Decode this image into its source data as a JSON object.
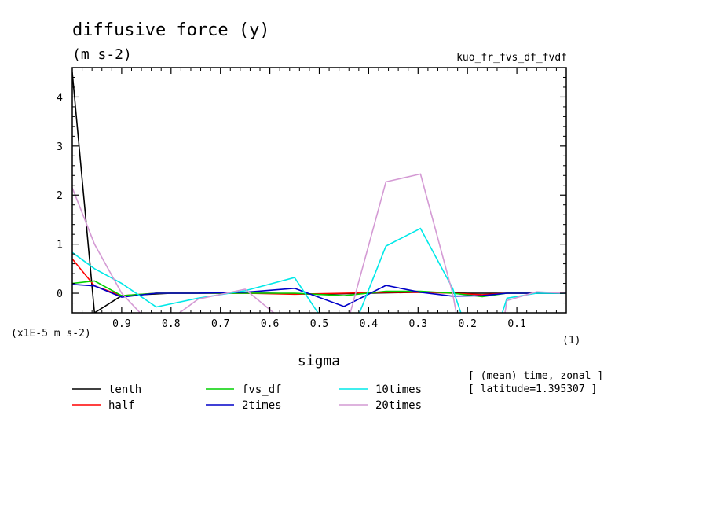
{
  "chart_data": {
    "type": "line",
    "title": "diffusive force (y)",
    "subtitle": "(m s-2)",
    "experiment_label": "kuo_fr_fvs_df_fvdf",
    "xlabel": "sigma",
    "x_unit": "(1)",
    "y_unit_label": "(x1E-5 m s-2)",
    "info_lines": [
      "[ (mean) time, zonal ]",
      "[ latitude=1.395307 ]"
    ],
    "xlim": [
      1.0,
      0.0
    ],
    "ylim": [
      -0.4,
      4.6
    ],
    "x_ticks": [
      0.9,
      0.8,
      0.7,
      0.6,
      0.5,
      0.4,
      0.3,
      0.2,
      0.1
    ],
    "x_tick_labels": [
      "0.9",
      "0.8",
      "0.7",
      "0.6",
      "0.5",
      "0.4",
      "0.3",
      "0.2",
      "0.1"
    ],
    "y_ticks": [
      0,
      1,
      2,
      3,
      4
    ],
    "y_tick_labels": [
      "0",
      "1",
      "2",
      "3",
      "4"
    ],
    "grid": false,
    "legend_position": "bottom",
    "series": [
      {
        "name": "tenth",
        "color": "#000000",
        "x": [
          1.0,
          0.955,
          0.9,
          0.8,
          0.7,
          0.6,
          0.5,
          0.4,
          0.3,
          0.2,
          0.1,
          0.0
        ],
        "y": [
          4.5,
          -0.4,
          -0.05,
          0.0,
          0.0,
          0.0,
          -0.02,
          0.0,
          0.02,
          0.0,
          0.0,
          0.0
        ]
      },
      {
        "name": "half",
        "color": "#ff0000",
        "x": [
          1.0,
          0.955,
          0.9,
          0.83,
          0.745,
          0.65,
          0.55,
          0.45,
          0.365,
          0.295,
          0.23,
          0.17,
          0.12,
          0.06,
          0.0
        ],
        "y": [
          0.7,
          0.15,
          -0.05,
          0.0,
          0.0,
          0.0,
          -0.02,
          0.0,
          0.02,
          0.02,
          0.0,
          -0.03,
          0.0,
          0.0,
          0.0
        ]
      },
      {
        "name": "fvs_df",
        "color": "#00d000",
        "x": [
          1.0,
          0.955,
          0.9,
          0.83,
          0.745,
          0.65,
          0.55,
          0.45,
          0.365,
          0.295,
          0.23,
          0.17,
          0.12,
          0.06,
          0.0
        ],
        "y": [
          0.2,
          0.25,
          -0.05,
          0.0,
          0.0,
          0.0,
          0.0,
          -0.05,
          0.04,
          0.04,
          0.0,
          -0.07,
          0.0,
          0.0,
          0.0
        ]
      },
      {
        "name": "2times",
        "color": "#0000c8",
        "x": [
          1.0,
          0.955,
          0.9,
          0.83,
          0.745,
          0.65,
          0.55,
          0.45,
          0.365,
          0.295,
          0.23,
          0.17,
          0.12,
          0.06,
          0.0
        ],
        "y": [
          0.18,
          0.15,
          -0.08,
          0.0,
          0.0,
          0.02,
          0.1,
          -0.27,
          0.16,
          0.02,
          -0.06,
          -0.05,
          0.0,
          0.0,
          0.0
        ]
      },
      {
        "name": "10times",
        "color": "#00e8e8",
        "x": [
          1.0,
          0.955,
          0.9,
          0.83,
          0.745,
          0.65,
          0.55,
          0.45,
          0.365,
          0.295,
          0.23,
          0.17,
          0.12,
          0.06,
          0.0
        ],
        "y": [
          0.83,
          0.5,
          0.2,
          -0.28,
          -0.1,
          0.05,
          0.32,
          -1.2,
          0.96,
          1.32,
          0.1,
          -1.7,
          -0.1,
          0.0,
          0.0
        ]
      },
      {
        "name": "20times",
        "color": "#d49ad4",
        "x": [
          1.0,
          0.955,
          0.9,
          0.83,
          0.745,
          0.65,
          0.55,
          0.45,
          0.365,
          0.295,
          0.23,
          0.17,
          0.12,
          0.06,
          0.0
        ],
        "y": [
          2.15,
          1.0,
          0.0,
          -0.75,
          -0.12,
          0.08,
          -0.75,
          -0.87,
          2.27,
          2.43,
          0.0,
          -3.3,
          -0.15,
          0.03,
          0.0
        ]
      }
    ]
  }
}
